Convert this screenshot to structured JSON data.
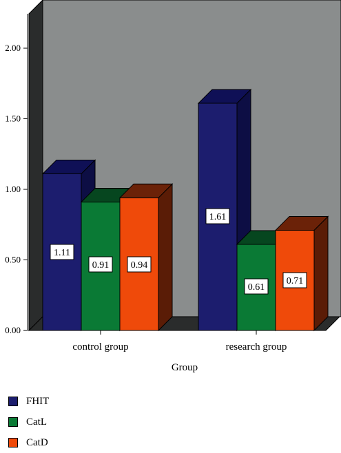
{
  "chart_data": {
    "type": "bar",
    "xlabel": "Group",
    "ylabel": "",
    "ylim": [
      0,
      2.3
    ],
    "yticks": [
      "0.00",
      "0.50",
      "1.00",
      "1.50",
      "2.00"
    ],
    "ytick_values": [
      0,
      0.5,
      1.0,
      1.5,
      2.0
    ],
    "categories": [
      "control group",
      "research group"
    ],
    "series": [
      {
        "name": "FHIT",
        "values": [
          1.11,
          1.61
        ],
        "labels": [
          "1.11",
          "1.61"
        ],
        "color": "#1c1d6e",
        "top_color": "#0f1056",
        "side_color": "#0d0e44"
      },
      {
        "name": "CatL",
        "values": [
          0.91,
          0.61
        ],
        "labels": [
          "0.91",
          "0.61"
        ],
        "color": "#0a7a35",
        "top_color": "#06461f",
        "side_color": "#043418"
      },
      {
        "name": "CatD",
        "values": [
          0.94,
          0.71
        ],
        "labels": [
          "0.94",
          "0.71"
        ],
        "color": "#ef4a0a",
        "top_color": "#6b2208",
        "side_color": "#5a1c06"
      }
    ],
    "legend_position": "bottom-left",
    "grid": false,
    "colors": {
      "plot_wall": "#8a8d8d",
      "left_wall": "#2a2c2c",
      "floor": "#2a2c2c"
    }
  }
}
